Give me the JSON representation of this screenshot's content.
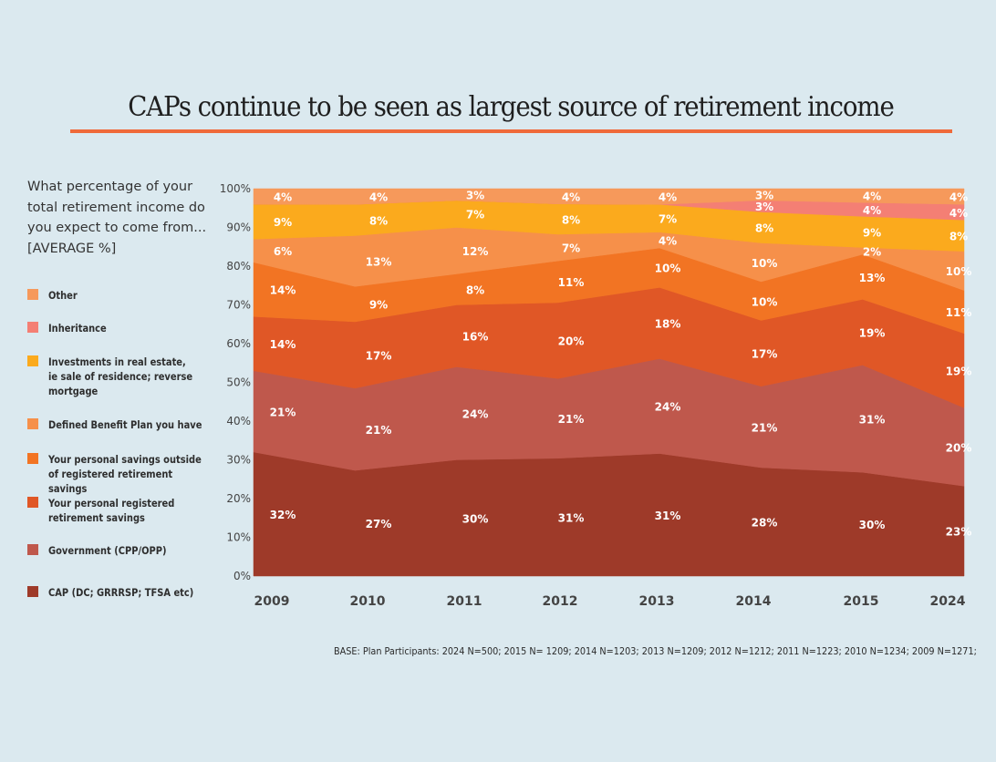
{
  "header": {
    "title": "CAPs continue to be seen as largest source of retirement income"
  },
  "question": "What percentage of your total retirement income do you expect to come from... [AVERAGE %]",
  "legend": [
    {
      "key": "other",
      "label": "Other",
      "color": "#f6995b"
    },
    {
      "key": "inheritance",
      "label": "Inheritance",
      "color": "#f47f74"
    },
    {
      "key": "real_estate",
      "label": "Investments in real estate,\nie sale of residence; reverse\nmortgage",
      "color": "#fbaa1d"
    },
    {
      "key": "db_plan",
      "label": "Defined Benefit Plan you have",
      "color": "#f6904a"
    },
    {
      "key": "personal_outside",
      "label": "Your personal savings outside\nof  registered retirement savings",
      "color": "#f27423"
    },
    {
      "key": "personal_registered",
      "label": "Your personal registered\nretirement savings",
      "color": "#e05726"
    },
    {
      "key": "government",
      "label": "Government (CPP/OPP)",
      "color": "#bf584c"
    },
    {
      "key": "cap",
      "label": "CAP (DC; GRRRSP; TFSA etc)",
      "color": "#9e3a29"
    }
  ],
  "chart_data": {
    "type": "area",
    "stacked": true,
    "title": "CAPs continue to be seen as largest source of retirement income",
    "xlabel": "",
    "ylabel": "",
    "ylim": [
      0,
      100
    ],
    "yticks": [
      "0%",
      "10%",
      "20%",
      "30%",
      "40%",
      "50%",
      "60%",
      "70%",
      "80%",
      "90%",
      "100%"
    ],
    "categories": [
      "2009",
      "2010",
      "2011",
      "2012",
      "2013",
      "2014",
      "2015",
      "2024"
    ],
    "series": [
      {
        "name": "CAP (DC; GRRRSP; TFSA etc)",
        "key": "cap",
        "values": [
          32,
          27,
          30,
          31,
          31,
          28,
          30,
          23
        ],
        "labels": [
          "32%",
          "27%",
          "30%",
          "31%",
          "31%",
          "28%",
          "30%",
          "23%"
        ]
      },
      {
        "name": "Government (CPP/OPP)",
        "key": "government",
        "values": [
          21,
          21,
          24,
          21,
          24,
          21,
          31,
          20
        ],
        "labels": [
          "21%",
          "21%",
          "24%",
          "21%",
          "24%",
          "21%",
          "31%",
          "20%"
        ]
      },
      {
        "name": "Your personal registered retirement savings",
        "key": "personal_registered",
        "values": [
          14,
          17,
          16,
          20,
          18,
          17,
          19,
          19
        ],
        "labels": [
          "14%",
          "17%",
          "16%",
          "20%",
          "18%",
          "17%",
          "19%",
          "19%"
        ]
      },
      {
        "name": "Your personal savings outside of registered retirement savings",
        "key": "personal_outside",
        "values": [
          14,
          9,
          8,
          11,
          10,
          10,
          13,
          11
        ],
        "labels": [
          "14%",
          "9%",
          "8%",
          "11%",
          "10%",
          "10%",
          "13%",
          "11%"
        ]
      },
      {
        "name": "Defined Benefit Plan you have",
        "key": "db_plan",
        "values": [
          6,
          13,
          12,
          7,
          4,
          10,
          2,
          10
        ],
        "labels": [
          "6%",
          "13%",
          "12%",
          "7%",
          "4%",
          "10%",
          "2%",
          "10%"
        ]
      },
      {
        "name": "Investments in real estate, ie sale of residence; reverse mortgage",
        "key": "real_estate",
        "values": [
          9,
          8,
          7,
          8,
          7,
          8,
          9,
          8
        ],
        "labels": [
          "9%",
          "8%",
          "7%",
          "8%",
          "7%",
          "8%",
          "9%",
          "8%"
        ]
      },
      {
        "name": "Inheritance",
        "key": "inheritance",
        "values": [
          0,
          0,
          0,
          0,
          0,
          3,
          4,
          4
        ],
        "labels": [
          "",
          "",
          "",
          "",
          "",
          "3%",
          "4%",
          "4%"
        ]
      },
      {
        "name": "Other",
        "key": "other",
        "values": [
          4,
          4,
          3,
          4,
          4,
          3,
          4,
          4
        ],
        "labels": [
          "4%",
          "4%",
          "3%",
          "4%",
          "4%",
          "3%",
          "4%",
          "4%"
        ]
      }
    ],
    "grid": false,
    "legend_position": "left"
  },
  "footnote": "BASE: Plan Participants: 2024 N=500; 2015 N= 1209; 2014 N=1203; 2013 N=1209; 2012  N=1212; 2011 N=1223; 2010 N=1234; 2009 N=1271;"
}
